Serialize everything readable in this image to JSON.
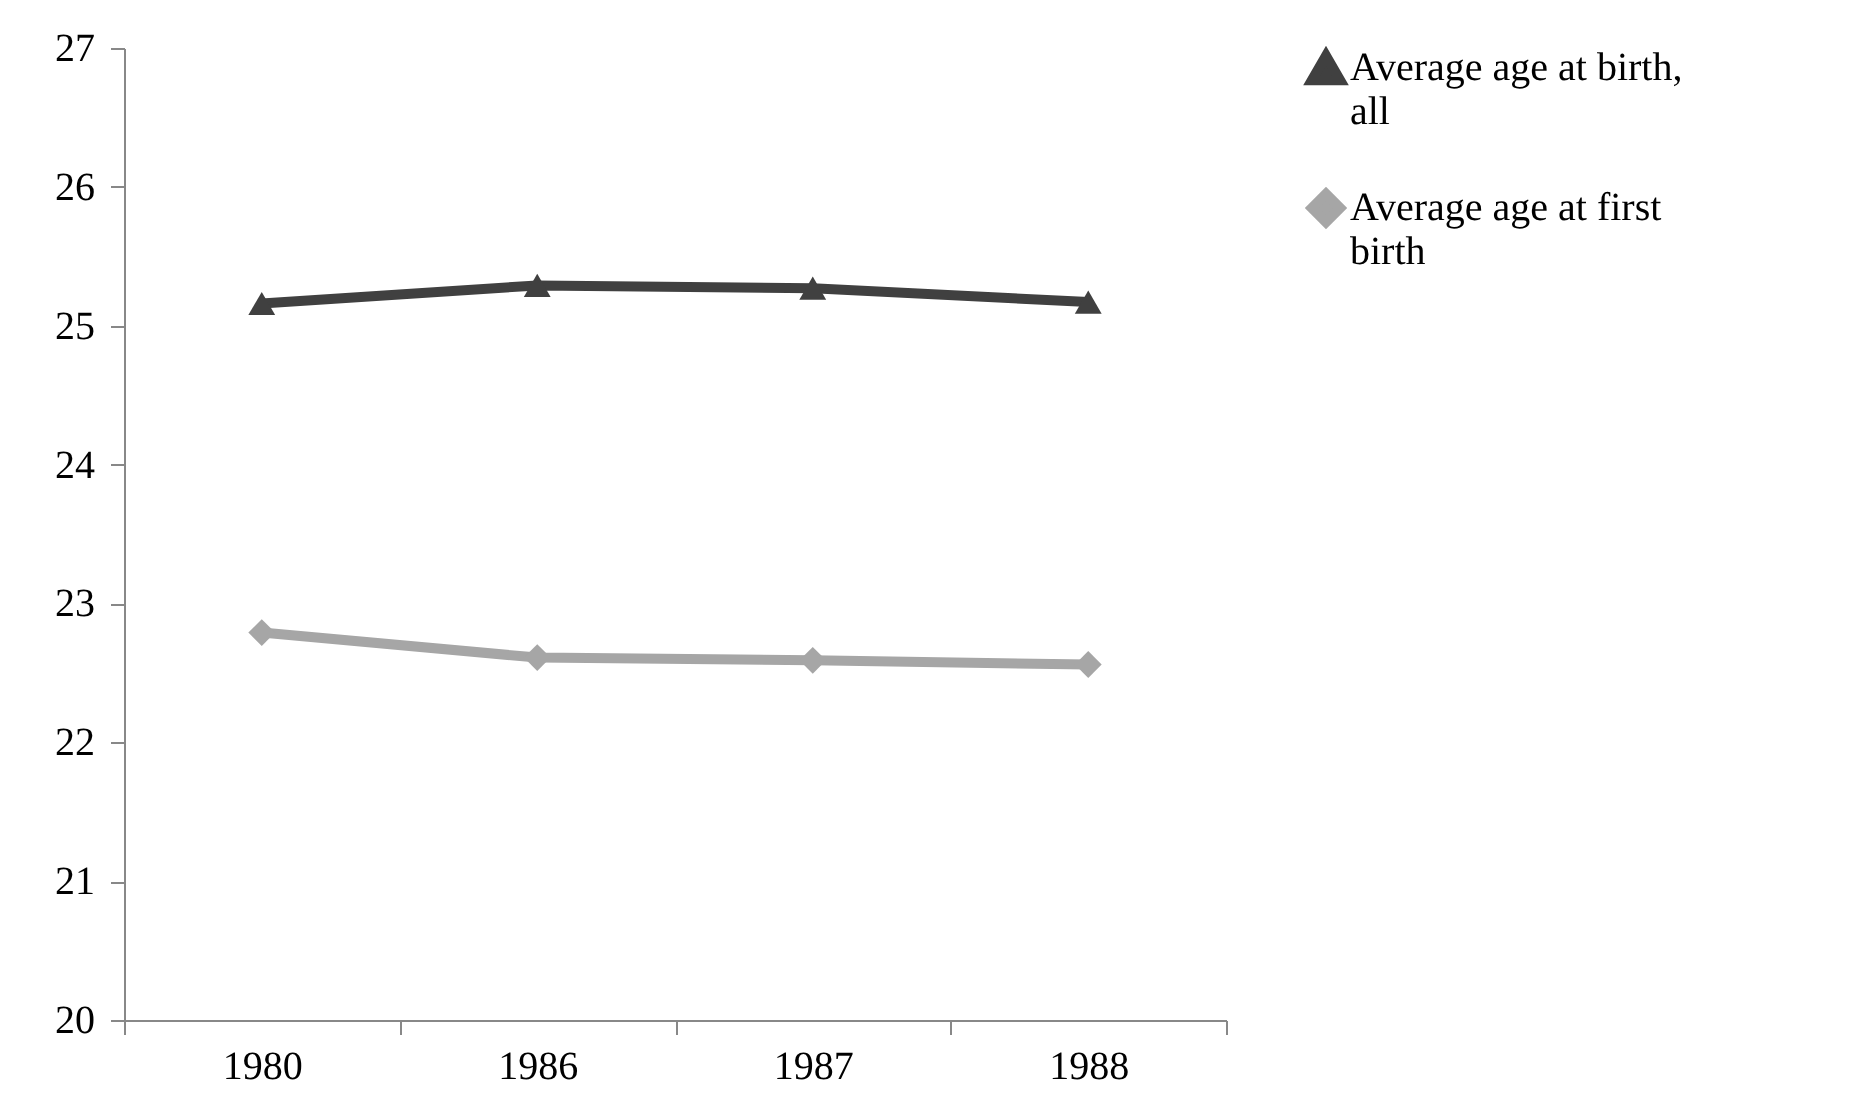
{
  "chart_data": {
    "type": "line",
    "categories": [
      "1980",
      "1986",
      "1987",
      "1988"
    ],
    "series": [
      {
        "name": "Average age at birth, all",
        "color": "#404040",
        "marker": "triangle",
        "values": [
          25.16,
          25.29,
          25.27,
          25.17
        ]
      },
      {
        "name": "Average age at first birth",
        "color": "#a6a6a6",
        "marker": "diamond",
        "values": [
          22.79,
          22.61,
          22.59,
          22.56
        ]
      }
    ],
    "ylim": [
      20,
      27
    ],
    "yticks": [
      20,
      21,
      22,
      23,
      24,
      25,
      26,
      27
    ],
    "grid": false,
    "legend": "right"
  }
}
